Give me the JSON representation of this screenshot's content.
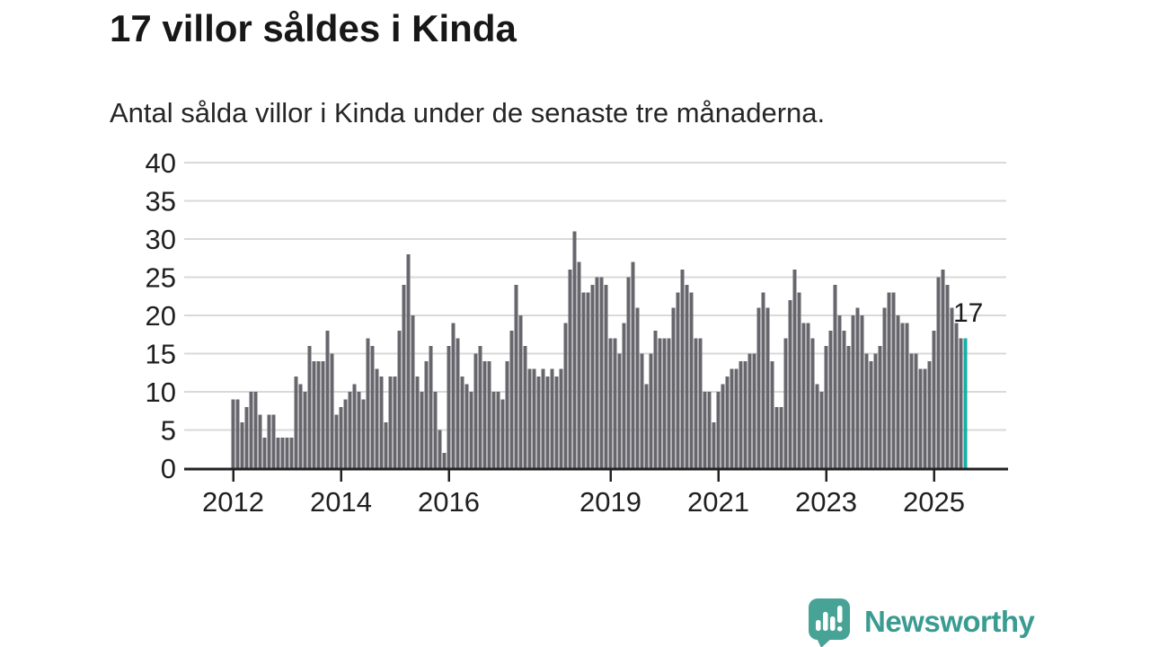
{
  "header": {
    "title": "17 villor såldes i Kinda",
    "subtitle": "Antal sålda villor i Kinda under de senaste tre månaderna."
  },
  "annotation": {
    "label": "17"
  },
  "logo": {
    "text": "Newsworthy",
    "icon": "bar-chart-speech-bubble"
  },
  "colors": {
    "bar": "#67666c",
    "highlight": "#14b0a6",
    "grid": "#d9d9d9",
    "axis": "#222222",
    "tick_text": "#1f1f1f",
    "logo_badge": "#47a396",
    "logo_text": "#3a9c91"
  },
  "chart_data": {
    "type": "bar",
    "title": "17 villor såldes i Kinda",
    "subtitle": "Antal sålda villor i Kinda under de senaste tre månaderna.",
    "xlabel": "",
    "ylabel": "",
    "unit": "sålda villor (rullande tre månader)",
    "start_period": "2012-01",
    "frequency": "monthly",
    "ylim": [
      0,
      40
    ],
    "grid": true,
    "yticks": [
      0,
      5,
      10,
      15,
      20,
      25,
      30,
      35,
      40
    ],
    "xticks": [
      {
        "label": "2012",
        "month_index": 0
      },
      {
        "label": "2014",
        "month_index": 24
      },
      {
        "label": "2016",
        "month_index": 48
      },
      {
        "label": "2019",
        "month_index": 84
      },
      {
        "label": "2021",
        "month_index": 108
      },
      {
        "label": "2023",
        "month_index": 132
      },
      {
        "label": "2025",
        "month_index": 156
      }
    ],
    "series": [
      {
        "name": "Antal sålda villor",
        "values": [
          9,
          9,
          6,
          8,
          10,
          10,
          7,
          4,
          7,
          7,
          4,
          4,
          4,
          4,
          12,
          11,
          10,
          16,
          14,
          14,
          14,
          18,
          15,
          7,
          8,
          9,
          10,
          11,
          10,
          9,
          17,
          16,
          13,
          12,
          6,
          12,
          12,
          18,
          24,
          28,
          20,
          12,
          10,
          14,
          16,
          10,
          5,
          2,
          16,
          19,
          17,
          12,
          11,
          10,
          15,
          16,
          14,
          14,
          10,
          10,
          9,
          14,
          18,
          24,
          20,
          16,
          13,
          13,
          12,
          13,
          12,
          13,
          12,
          13,
          19,
          26,
          31,
          27,
          23,
          23,
          24,
          25,
          25,
          24,
          17,
          17,
          15,
          19,
          25,
          27,
          21,
          15,
          11,
          15,
          18,
          17,
          17,
          17,
          21,
          23,
          26,
          24,
          23,
          17,
          17,
          10,
          10,
          6,
          10,
          11,
          12,
          13,
          13,
          14,
          14,
          15,
          15,
          21,
          23,
          21,
          14,
          8,
          8,
          17,
          22,
          26,
          23,
          19,
          19,
          17,
          11,
          10,
          16,
          18,
          24,
          20,
          18,
          16,
          20,
          21,
          20,
          15,
          14,
          15,
          16,
          21,
          23,
          23,
          20,
          19,
          19,
          15,
          15,
          13,
          13,
          14,
          18,
          25,
          26,
          24,
          21,
          19,
          17,
          17
        ]
      }
    ],
    "highlight_last_value": 17,
    "legend": false
  }
}
